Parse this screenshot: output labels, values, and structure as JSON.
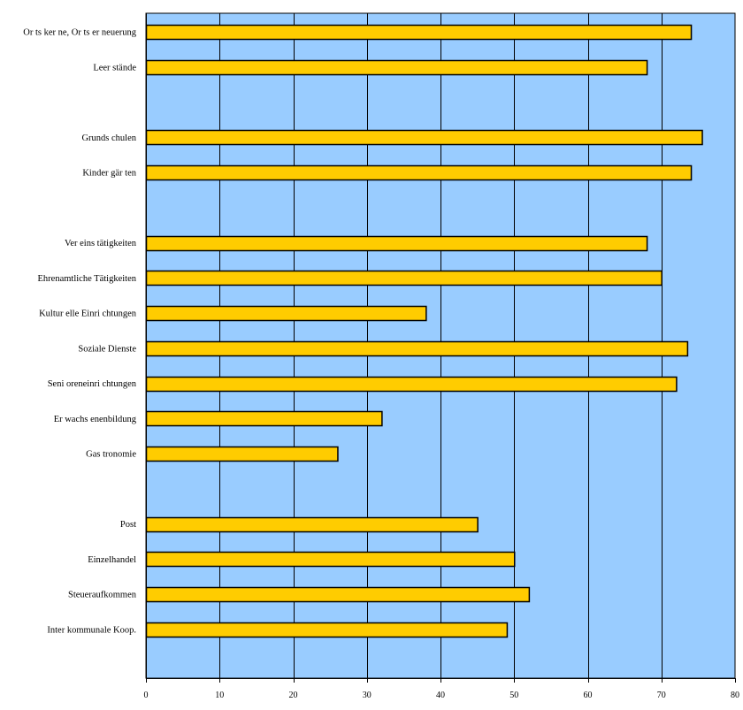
{
  "chart_data": {
    "type": "bar",
    "orientation": "horizontal",
    "title": "",
    "xlabel": "",
    "ylabel": "",
    "xlim": [
      0,
      80
    ],
    "x_ticks": [
      0,
      10,
      20,
      30,
      40,
      50,
      60,
      70,
      80
    ],
    "grid": "vertical gridlines",
    "legend": "none",
    "categories": [
      "Or ts ker ne, Or ts er neuerung",
      "Leer stände",
      "",
      "Grunds chulen",
      "Kinder gär ten",
      "",
      "Ver eins tätigkeiten",
      "Ehrenamtliche Tätigkeiten",
      "Kultur elle Einri chtungen",
      "Soziale Dienste",
      "Seni oreneinri chtungen",
      "Er wachs enenbildung",
      "Gas tronomie",
      "",
      "Post",
      "Einzelhandel",
      "Steueraufkommen",
      "Inter kommunale Koop."
    ],
    "values": [
      74,
      68,
      null,
      75.5,
      74,
      null,
      68,
      70,
      38,
      73.5,
      72,
      32,
      26,
      null,
      45,
      50,
      52,
      49
    ],
    "colors": {
      "plot_background": "#99ccff",
      "bar_fill": "#ffcc00",
      "bar_stroke": "#000000",
      "gridline": "#000000",
      "axis": "#000000"
    }
  }
}
